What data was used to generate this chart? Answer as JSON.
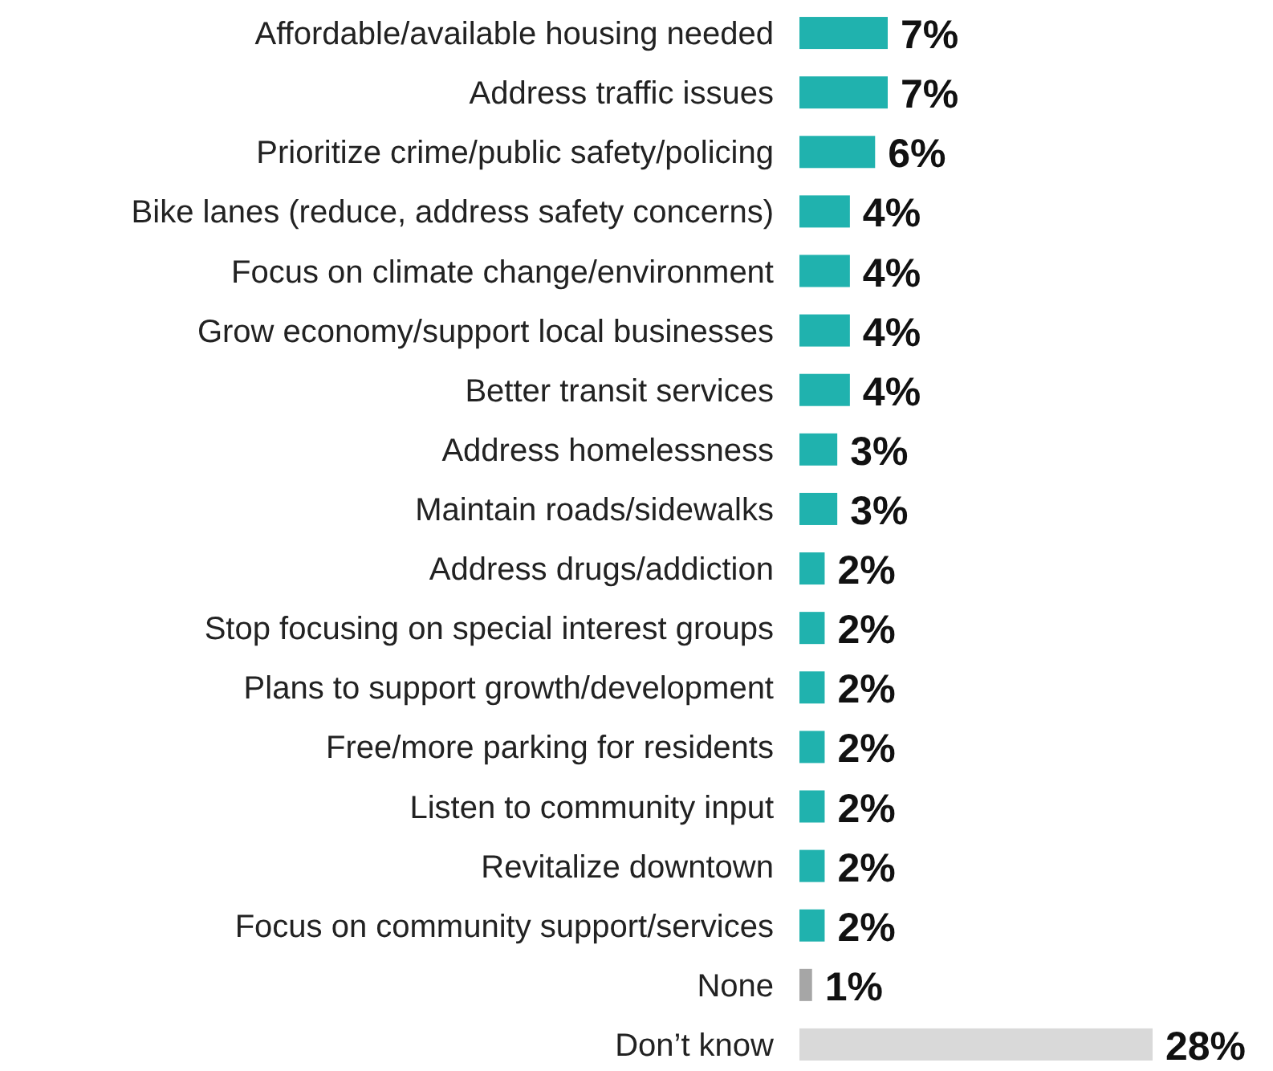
{
  "chart_data": {
    "type": "bar",
    "orientation": "horizontal",
    "categories": [
      "Affordable/available housing needed",
      "Address traffic issues",
      "Prioritize crime/public safety/policing",
      "Bike lanes (reduce, address safety concerns)",
      "Focus on climate change/environment",
      "Grow economy/support local businesses",
      "Better transit services",
      "Address homelessness",
      "Maintain roads/sidewalks",
      "Address drugs/addiction",
      "Stop focusing on special interest groups",
      "Plans to support growth/development",
      "Free/more parking for residents",
      "Listen to community input",
      "Revitalize downtown",
      "Focus on community support/services",
      "None",
      "Don’t know"
    ],
    "values": [
      7,
      7,
      6,
      4,
      4,
      4,
      4,
      3,
      3,
      2,
      2,
      2,
      2,
      2,
      2,
      2,
      1,
      28
    ],
    "colors": [
      "#20b2ae",
      "#20b2ae",
      "#20b2ae",
      "#20b2ae",
      "#20b2ae",
      "#20b2ae",
      "#20b2ae",
      "#20b2ae",
      "#20b2ae",
      "#20b2ae",
      "#20b2ae",
      "#20b2ae",
      "#20b2ae",
      "#20b2ae",
      "#20b2ae",
      "#20b2ae",
      "#a6a6a6",
      "#d9d9d9"
    ],
    "value_labels": [
      "7%",
      "7%",
      "6%",
      "4%",
      "4%",
      "4%",
      "4%",
      "3%",
      "3%",
      "2%",
      "2%",
      "2%",
      "2%",
      "2%",
      "2%",
      "2%",
      "1%",
      "28%"
    ]
  }
}
